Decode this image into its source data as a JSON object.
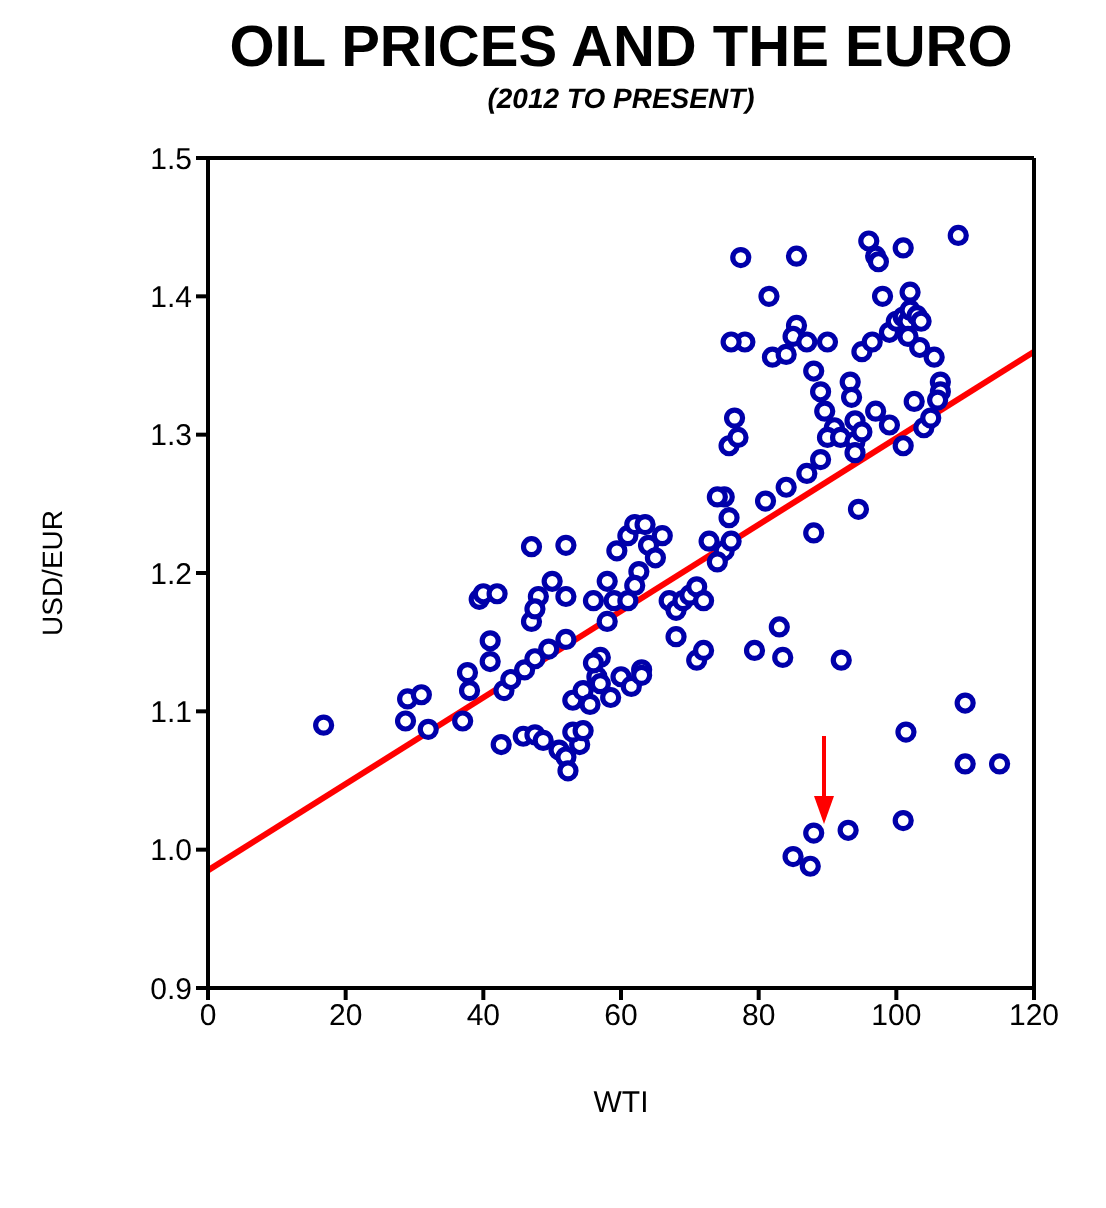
{
  "chart_data": {
    "type": "scatter",
    "title": "OIL PRICES AND THE EURO",
    "subtitle": "(2012 TO PRESENT)",
    "xlabel": "WTI",
    "ylabel": "USD/EUR",
    "xlim": [
      0,
      120
    ],
    "xticks": [
      0,
      20,
      40,
      60,
      80,
      100,
      120
    ],
    "ylim": [
      0.9,
      1.5
    ],
    "yticks": [
      0.9,
      {
        "value": 1,
        "label": "1.0"
      },
      1.1,
      1.2,
      1.3,
      1.4,
      1.5
    ],
    "marker": "circle",
    "series": [
      {
        "color": "#0000aa",
        "x": [
          16.8,
          28.7,
          29,
          31,
          32,
          37,
          38,
          37.7,
          39.4,
          40,
          42,
          41,
          41,
          42.6,
          45.8,
          47.5,
          48.7,
          47,
          52,
          48,
          50,
          52,
          47,
          47.5,
          43,
          44,
          46,
          47.5,
          49.5,
          52,
          51,
          52,
          52.3,
          54,
          53,
          54.5,
          53,
          54.5,
          55.5,
          56.5,
          57,
          58,
          59,
          56,
          59.4,
          61,
          62,
          63.5,
          64,
          66,
          65,
          62.6,
          62,
          61,
          58,
          57,
          58.5,
          60,
          61.5,
          63,
          56,
          63,
          67,
          68,
          69,
          70,
          71,
          72,
          68,
          71,
          72,
          72.8,
          75,
          75.7,
          75,
          74,
          75.7,
          77,
          76.5,
          74,
          76,
          78,
          76,
          77.4,
          81.5,
          82,
          81,
          84,
          87,
          79.4,
          83,
          83.5,
          85.5,
          85.5,
          85,
          87,
          84,
          90,
          88,
          89,
          89.6,
          91,
          90,
          91.9,
          89,
          93.3,
          93.5,
          94,
          94,
          95,
          94,
          94.5,
          96,
          97,
          97.4,
          98,
          95,
          96.5,
          99,
          100,
          101,
          101.7,
          101.7,
          102,
          102,
          103,
          101,
          103.6,
          103.4,
          105.5,
          106.4,
          106.4,
          106,
          97,
          99,
          102.6,
          104,
          101,
          105,
          109,
          92,
          88,
          101.4,
          110,
          110,
          115,
          85,
          88,
          87.5,
          93,
          101
        ],
        "values": [
          1.09,
          1.093,
          1.109,
          1.112,
          1.087,
          1.093,
          1.115,
          1.128,
          1.181,
          1.185,
          1.185,
          1.136,
          1.151,
          1.076,
          1.082,
          1.083,
          1.079,
          1.219,
          1.22,
          1.183,
          1.194,
          1.183,
          1.165,
          1.174,
          1.115,
          1.123,
          1.13,
          1.138,
          1.145,
          1.152,
          1.072,
          1.067,
          1.057,
          1.076,
          1.085,
          1.086,
          1.108,
          1.115,
          1.105,
          1.125,
          1.139,
          1.165,
          1.18,
          1.18,
          1.216,
          1.227,
          1.235,
          1.235,
          1.22,
          1.227,
          1.211,
          1.201,
          1.191,
          1.18,
          1.194,
          1.12,
          1.11,
          1.125,
          1.118,
          1.13,
          1.135,
          1.126,
          1.18,
          1.173,
          1.18,
          1.184,
          1.19,
          1.18,
          1.154,
          1.137,
          1.144,
          1.223,
          1.216,
          1.24,
          1.255,
          1.255,
          1.292,
          1.298,
          1.312,
          1.208,
          1.223,
          1.367,
          1.367,
          1.428,
          1.4,
          1.356,
          1.252,
          1.262,
          1.272,
          1.144,
          1.161,
          1.139,
          1.429,
          1.379,
          1.371,
          1.367,
          1.358,
          1.367,
          1.346,
          1.331,
          1.317,
          1.305,
          1.298,
          1.298,
          1.282,
          1.338,
          1.327,
          1.31,
          1.295,
          1.302,
          1.287,
          1.246,
          1.44,
          1.429,
          1.425,
          1.4,
          1.36,
          1.367,
          1.374,
          1.382,
          1.385,
          1.382,
          1.371,
          1.39,
          1.403,
          1.386,
          1.435,
          1.382,
          1.363,
          1.356,
          1.338,
          1.331,
          1.325,
          1.317,
          1.307,
          1.324,
          1.305,
          1.292,
          1.312,
          1.444,
          1.137,
          1.229,
          1.085,
          1.106,
          1.062,
          1.062,
          0.995,
          1.012,
          0.988,
          1.014,
          1.021
        ]
      },
      {
        "type": "line",
        "color": "#ff0000",
        "marker": "none",
        "x": [
          0,
          120
        ],
        "values": [
          0.985,
          1.36
        ]
      }
    ]
  }
}
